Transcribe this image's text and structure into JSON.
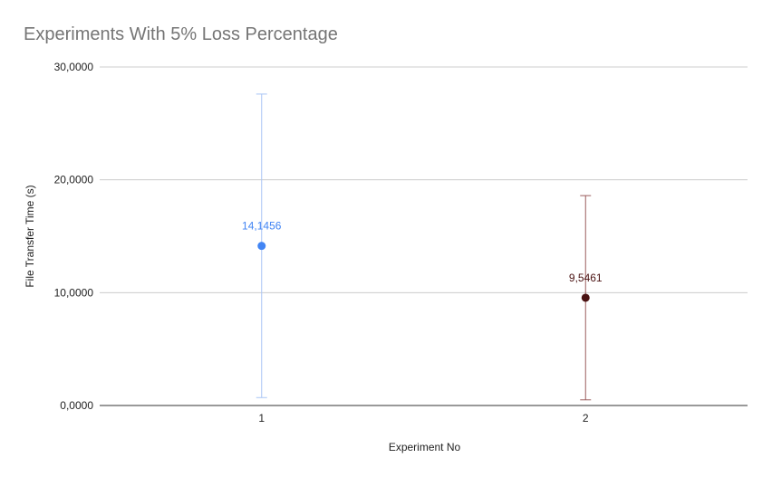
{
  "chart_data": {
    "type": "scatter",
    "title": "Experiments With 5% Loss Percentage",
    "xlabel": "Experiment No",
    "ylabel": "File Transfer Time (s)",
    "ylim": [
      0,
      30
    ],
    "yticks": [
      0,
      10,
      20,
      30
    ],
    "ytick_labels": [
      "0,0000",
      "10,0000",
      "20,0000",
      "30,0000"
    ],
    "categories": [
      "1",
      "2"
    ],
    "grid": true,
    "points": [
      {
        "x": "1",
        "y": 14.1456,
        "label": "14,1456",
        "error_low": 0.7,
        "error_high": 27.6,
        "color": "#4285f4",
        "error_color": "#a8c4f5"
      },
      {
        "x": "2",
        "y": 9.5461,
        "label": "9,5461",
        "error_low": 0.5,
        "error_high": 18.6,
        "color": "#4a1212",
        "error_color": "#9b5c5c"
      }
    ]
  }
}
